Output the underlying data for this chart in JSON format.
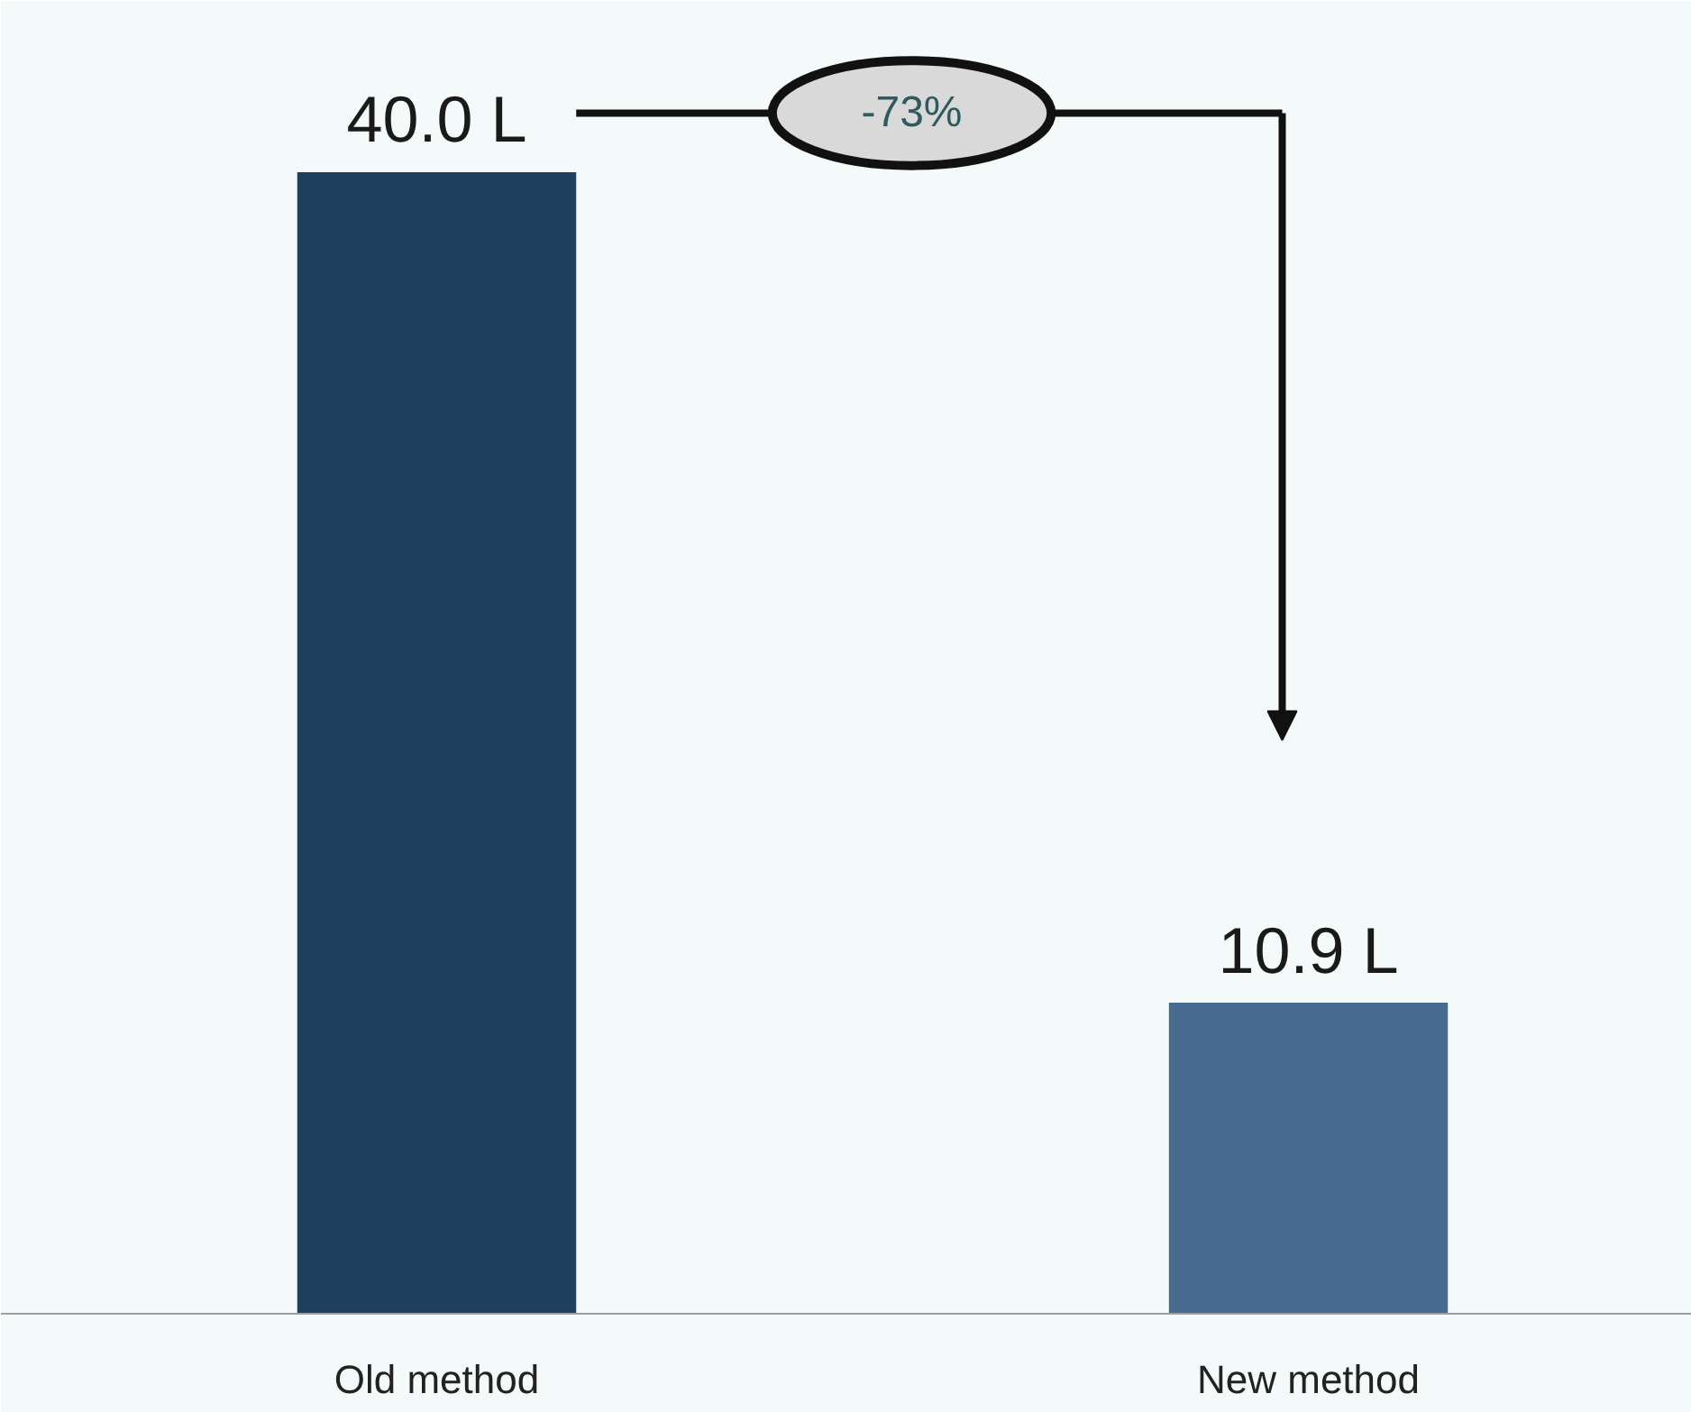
{
  "chart_data": {
    "type": "bar",
    "categories": [
      "Old method",
      "New method"
    ],
    "values": [
      40.0,
      10.9
    ],
    "colors": [
      "#1f3f5f",
      "#466b8e"
    ],
    "value_labels": [
      "40.0 L",
      "10.9 L"
    ],
    "annotations": [
      "-73%"
    ]
  }
}
